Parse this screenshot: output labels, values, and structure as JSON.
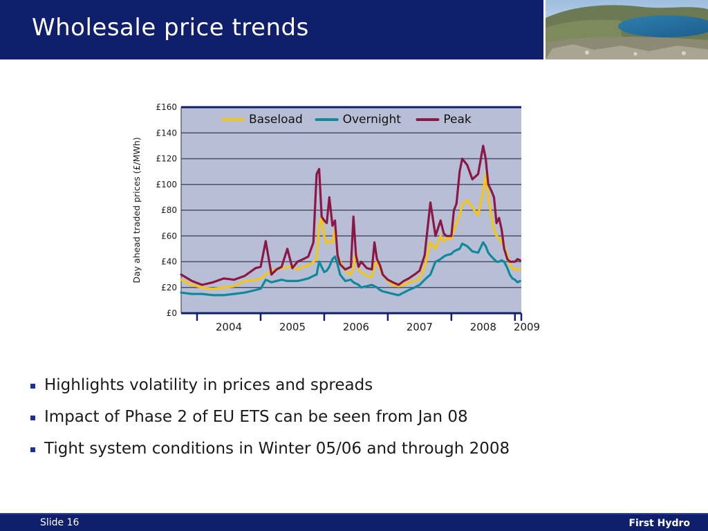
{
  "slide": {
    "title": "Wholesale price trends",
    "bullets": [
      "Highlights volatility in prices and spreads",
      "Impact of Phase 2 of EU ETS can be seen from Jan 08",
      "Tight system conditions in Winter 05/06 and through 2008"
    ],
    "footer": {
      "slide_label": "Slide 16",
      "brand": "First Hydro"
    }
  },
  "chart_data": {
    "type": "line",
    "ylabel": "Day ahead traded prices (£/MWh)",
    "xlabel": "",
    "ylim": [
      0,
      160
    ],
    "yticks": [
      "£0",
      "£20",
      "£40",
      "£60",
      "£80",
      "£100",
      "£120",
      "£140",
      "£160"
    ],
    "xlim": [
      2003.75,
      2009.1
    ],
    "xticks": [
      "2004",
      "2005",
      "2006",
      "2007",
      "2008",
      "2009"
    ],
    "grid": true,
    "legend": "top",
    "plot_background": "#b7bed5",
    "x": [
      2003.75,
      2003.92,
      2004.08,
      2004.25,
      2004.42,
      2004.58,
      2004.75,
      2004.92,
      2005.0,
      2005.08,
      2005.17,
      2005.25,
      2005.33,
      2005.42,
      2005.5,
      2005.58,
      2005.67,
      2005.75,
      2005.83,
      2005.88,
      2005.92,
      2005.96,
      2006.0,
      2006.04,
      2006.08,
      2006.13,
      2006.17,
      2006.21,
      2006.25,
      2006.33,
      2006.42,
      2006.46,
      2006.5,
      2006.54,
      2006.58,
      2006.67,
      2006.75,
      2006.79,
      2006.83,
      2006.88,
      2006.92,
      2007.0,
      2007.08,
      2007.17,
      2007.25,
      2007.33,
      2007.42,
      2007.5,
      2007.58,
      2007.67,
      2007.75,
      2007.83,
      2007.88,
      2007.92,
      2008.0,
      2008.04,
      2008.08,
      2008.13,
      2008.17,
      2008.25,
      2008.33,
      2008.42,
      2008.5,
      2008.54,
      2008.58,
      2008.63,
      2008.67,
      2008.71,
      2008.75,
      2008.79,
      2008.83,
      2008.88,
      2008.92,
      2008.96,
      2009.0,
      2009.04,
      2009.08
    ],
    "series": [
      {
        "name": "Baseload",
        "color": "#f6c614",
        "values": [
          26,
          22,
          20,
          19,
          20,
          21,
          25,
          26,
          27,
          30,
          33,
          34,
          35,
          36,
          36,
          34,
          36,
          37,
          40,
          42,
          68,
          75,
          60,
          54,
          56,
          55,
          66,
          45,
          40,
          33,
          30,
          36,
          48,
          34,
          32,
          29,
          28,
          38,
          40,
          34,
          30,
          25,
          22,
          21,
          22,
          24,
          25,
          27,
          36,
          55,
          50,
          60,
          56,
          58,
          58,
          65,
          70,
          76,
          84,
          88,
          82,
          76,
          95,
          108,
          90,
          75,
          65,
          60,
          58,
          55,
          52,
          45,
          38,
          35,
          34,
          34,
          34
        ]
      },
      {
        "name": "Overnight",
        "color": "#0c8a9a",
        "values": [
          16,
          15,
          15,
          14,
          14,
          15,
          16,
          18,
          19,
          26,
          24,
          25,
          26,
          25,
          25,
          25,
          26,
          27,
          29,
          30,
          40,
          36,
          32,
          33,
          36,
          42,
          44,
          38,
          30,
          25,
          26,
          24,
          23,
          22,
          20,
          21,
          22,
          21,
          20,
          18,
          17,
          16,
          15,
          14,
          16,
          18,
          20,
          22,
          26,
          30,
          40,
          42,
          44,
          45,
          46,
          48,
          49,
          50,
          54,
          52,
          48,
          47,
          55,
          52,
          47,
          44,
          42,
          40,
          40,
          41,
          40,
          35,
          30,
          27,
          26,
          24,
          25
        ]
      },
      {
        "name": "Peak",
        "color": "#8b1745",
        "values": [
          30,
          25,
          22,
          24,
          27,
          26,
          29,
          35,
          36,
          56,
          30,
          34,
          36,
          50,
          35,
          40,
          42,
          44,
          55,
          108,
          112,
          75,
          72,
          70,
          90,
          68,
          72,
          45,
          38,
          34,
          36,
          75,
          45,
          36,
          40,
          35,
          34,
          55,
          42,
          37,
          30,
          26,
          24,
          22,
          25,
          27,
          30,
          33,
          45,
          86,
          60,
          72,
          62,
          60,
          60,
          80,
          85,
          110,
          120,
          115,
          104,
          108,
          130,
          120,
          100,
          95,
          90,
          70,
          74,
          65,
          50,
          42,
          40,
          40,
          40,
          42,
          41
        ]
      }
    ]
  }
}
